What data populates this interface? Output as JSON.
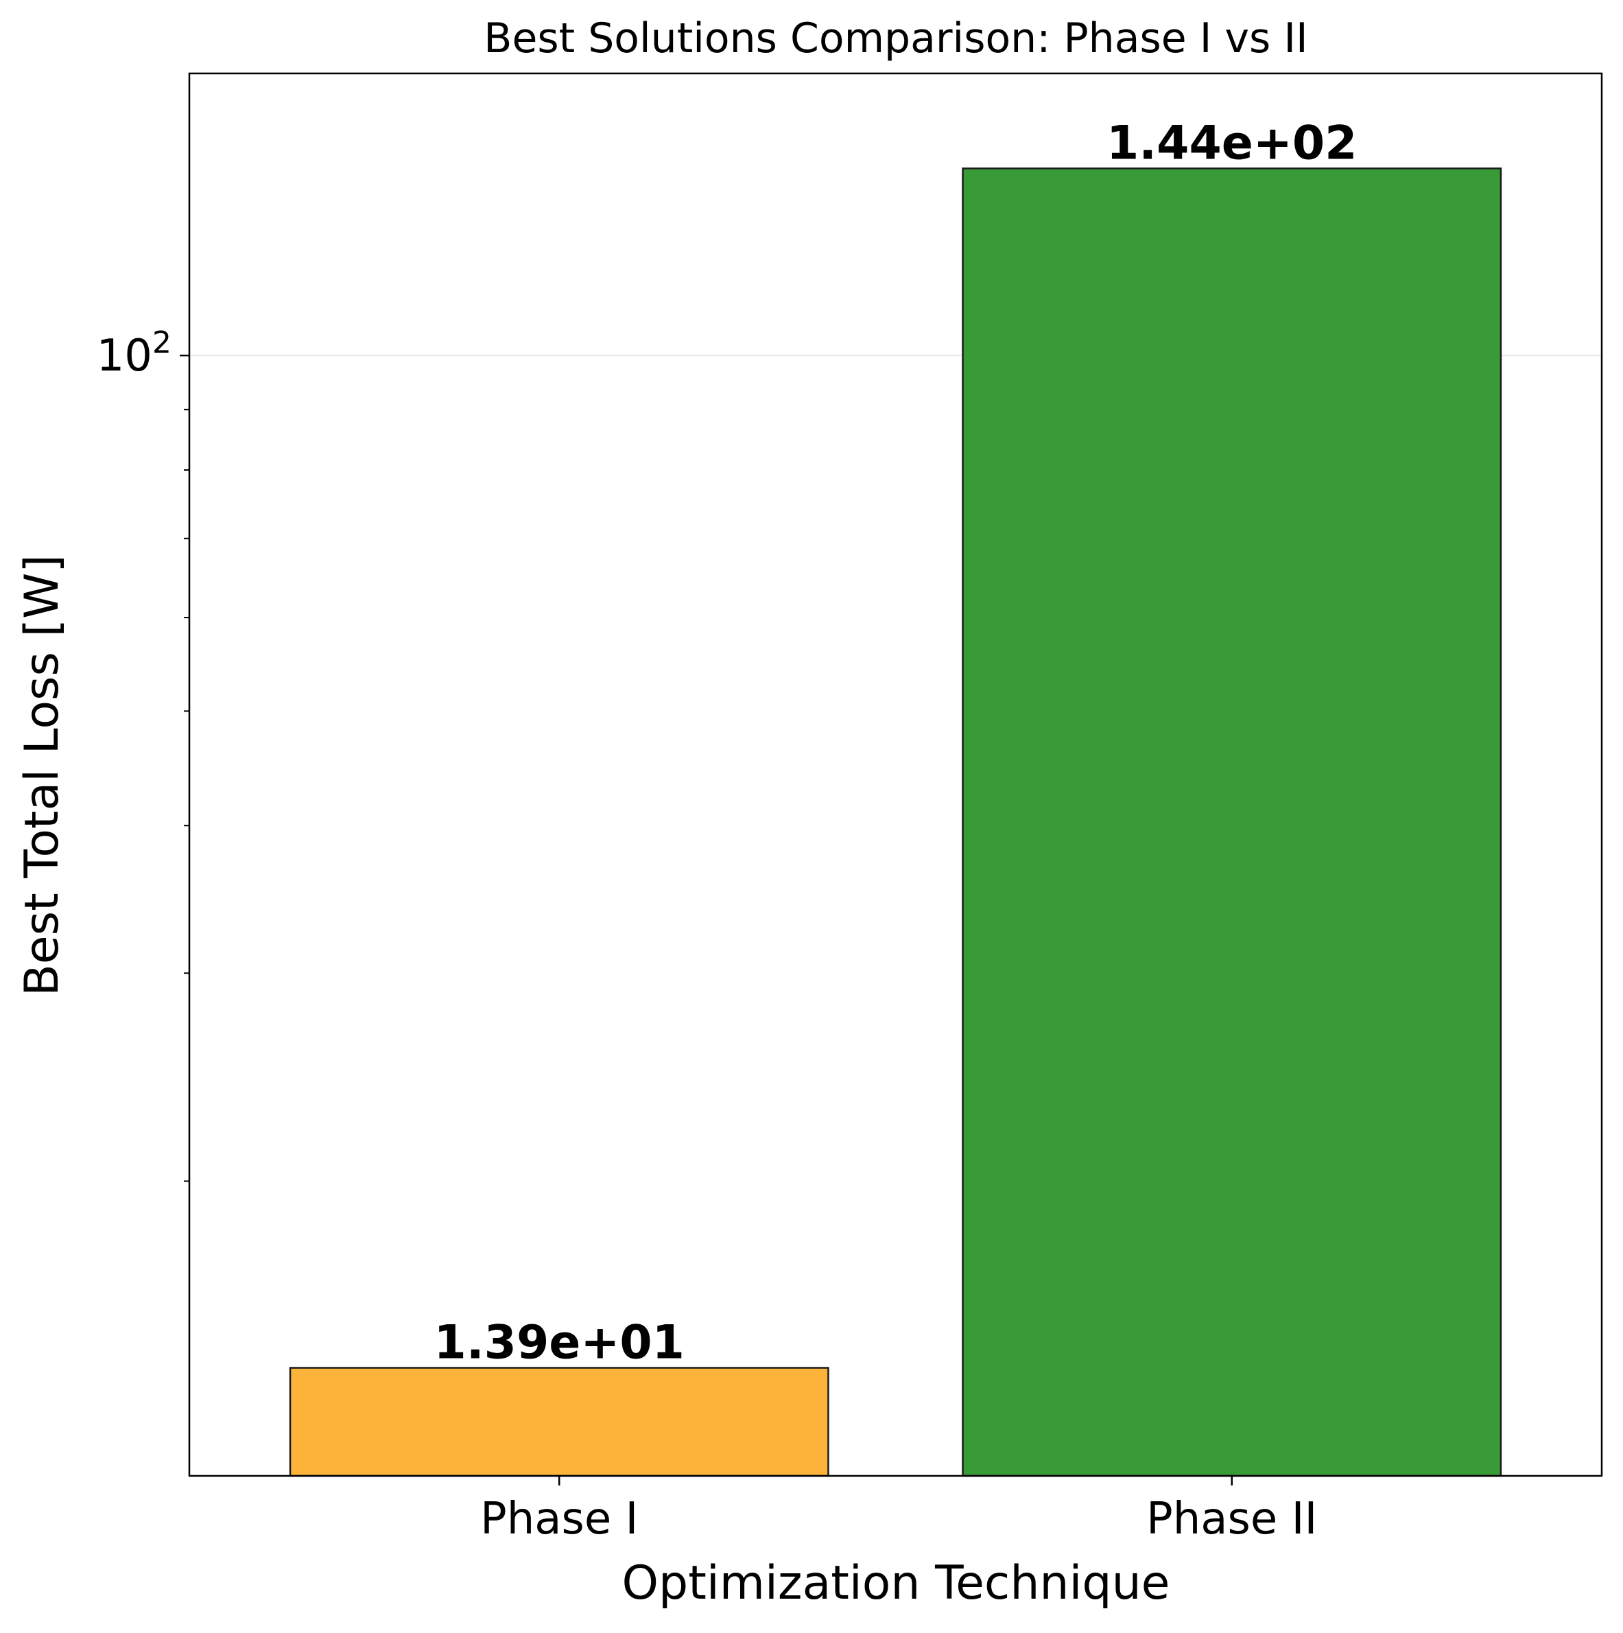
{
  "chart_data": {
    "type": "bar",
    "title": "Best Solutions Comparison: Phase I vs II",
    "xlabel": "Optimization Technique",
    "ylabel": "Best Total Loss [W]",
    "yscale": "log",
    "ylim": [
      11.26,
      173.3
    ],
    "grid": "y-major",
    "categories": [
      "Phase I",
      "Phase II"
    ],
    "values": [
      13.9,
      144.0
    ],
    "data_labels": [
      "1.39e+01",
      "1.44e+02"
    ],
    "bar_colors": [
      "#fbb335",
      "#359834"
    ],
    "edge_color": "#1a1a1a",
    "y_major_ticks": [
      {
        "value": 100,
        "base": "10",
        "exponent": "2"
      }
    ],
    "y_minor_ticks": [
      20,
      30,
      40,
      50,
      60,
      70,
      80,
      90
    ]
  }
}
